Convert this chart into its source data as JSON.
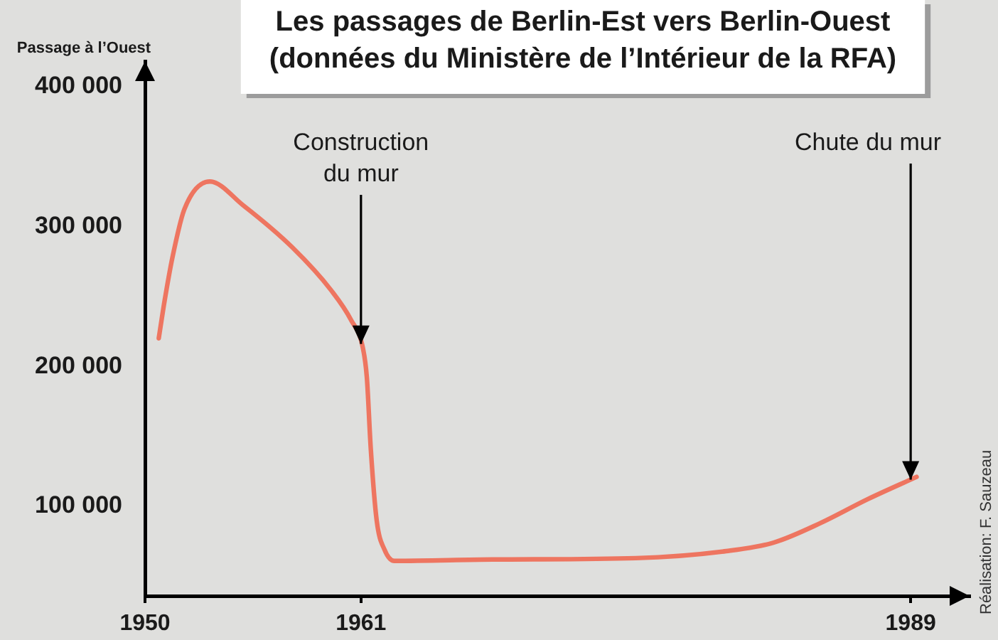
{
  "chart_data": {
    "type": "line",
    "title": "Les passages de Berlin-Est vers Berlin-Ouest",
    "subtitle": "(données du Ministère de l’Intérieur de la RFA)",
    "ylabel": "Passage à l’Ouest",
    "x": [
      1950.7,
      1951.0,
      1951.4,
      1952.0,
      1953.3,
      1955.0,
      1957.5,
      1959.5,
      1960.5,
      1961.1,
      1961.3,
      1961.5,
      1961.8,
      1962.2,
      1962.7,
      1967.7,
      1975.0,
      1979.6,
      1982.0,
      1984.4,
      1986.8,
      1989.3
    ],
    "values": [
      220000,
      247000,
      278000,
      312000,
      332000,
      315000,
      285000,
      254000,
      233000,
      213000,
      192000,
      141000,
      90000,
      69000,
      61000,
      62000,
      63000,
      68000,
      74000,
      88000,
      105000,
      121000
    ],
    "color": "#ee7560",
    "xlim": [
      1950,
      1992
    ],
    "xticks": [
      1950,
      1961,
      1989
    ],
    "ylim": [
      36000,
      418000
    ],
    "yticks": [
      {
        "value": 100000,
        "label": "100 000"
      },
      {
        "value": 200000,
        "label": "200 000"
      },
      {
        "value": 300000,
        "label": "300 000"
      },
      {
        "value": 400000,
        "label": "400 000"
      }
    ],
    "annotations": [
      {
        "text": "Construction du mur",
        "x": 1961,
        "y": 216000
      },
      {
        "text": "Chute du mur",
        "x": 1989,
        "y": 119000
      },
      "Réalisation: F. Sauzeau"
    ]
  }
}
